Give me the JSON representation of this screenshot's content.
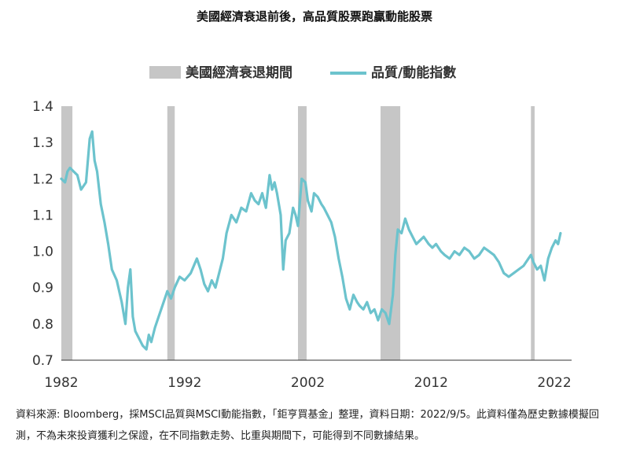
{
  "chart_data": {
    "type": "line",
    "title": "美國經濟衰退前後，高品質股票跑贏動能股票",
    "legend": {
      "placement": "top",
      "recession_label": "美國經濟衰退期間",
      "series_label": "品質/動能指數"
    },
    "xlim": [
      1982,
      2023.4
    ],
    "ylim": [
      0.7,
      1.4
    ],
    "x_ticks": [
      "1982",
      "1992",
      "2002",
      "2012",
      "2022"
    ],
    "x_tick_values": [
      1982,
      1992,
      2002,
      2012,
      2022
    ],
    "y_ticks": [
      "0.7",
      "0.8",
      "0.9",
      "1.0",
      "1.1",
      "1.2",
      "1.3",
      "1.4"
    ],
    "y_tick_values": [
      0.7,
      0.8,
      0.9,
      1.0,
      1.1,
      1.2,
      1.3,
      1.4
    ],
    "recessions": [
      {
        "start": 1982.0,
        "end": 1982.9
      },
      {
        "start": 1990.6,
        "end": 1991.2
      },
      {
        "start": 2001.2,
        "end": 2001.9
      },
      {
        "start": 2007.9,
        "end": 2009.5
      },
      {
        "start": 2020.1,
        "end": 2020.4
      }
    ],
    "series": [
      {
        "name": "品質/動能指數",
        "color": "#6cc3cd",
        "x": [
          1982.0,
          1982.3,
          1982.5,
          1982.7,
          1983.0,
          1983.3,
          1983.6,
          1984.0,
          1984.3,
          1984.5,
          1984.7,
          1984.9,
          1985.2,
          1985.5,
          1985.8,
          1986.1,
          1986.5,
          1986.9,
          1987.2,
          1987.4,
          1987.6,
          1987.8,
          1988.0,
          1988.3,
          1988.6,
          1988.9,
          1989.1,
          1989.3,
          1989.6,
          1989.9,
          1990.3,
          1990.6,
          1990.9,
          1991.2,
          1991.6,
          1992.0,
          1992.5,
          1993.0,
          1993.3,
          1993.6,
          1993.9,
          1994.2,
          1994.5,
          1994.8,
          1995.1,
          1995.4,
          1995.8,
          1996.2,
          1996.6,
          1997.0,
          1997.4,
          1997.7,
          1998.0,
          1998.3,
          1998.6,
          1998.9,
          1999.1,
          1999.3,
          1999.5,
          1999.8,
          2000.0,
          2000.2,
          2000.5,
          2000.8,
          2001.0,
          2001.2,
          2001.5,
          2001.8,
          2002.0,
          2002.3,
          2002.5,
          2002.8,
          2003.1,
          2003.3,
          2003.6,
          2003.9,
          2004.2,
          2004.5,
          2004.8,
          2005.1,
          2005.4,
          2005.7,
          2006.0,
          2006.2,
          2006.5,
          2006.8,
          2007.1,
          2007.4,
          2007.7,
          2008.0,
          2008.3,
          2008.6,
          2008.9,
          2009.1,
          2009.3,
          2009.6,
          2009.9,
          2010.2,
          2010.5,
          2010.8,
          2011.1,
          2011.4,
          2011.8,
          2012.1,
          2012.4,
          2012.8,
          2013.1,
          2013.5,
          2013.9,
          2014.3,
          2014.7,
          2015.1,
          2015.5,
          2015.9,
          2016.3,
          2016.7,
          2017.1,
          2017.5,
          2017.9,
          2018.3,
          2018.7,
          2019.1,
          2019.5,
          2019.9,
          2020.1,
          2020.3,
          2020.6,
          2020.9,
          2021.2,
          2021.5,
          2021.8,
          2022.1,
          2022.3,
          2022.5
        ],
        "y": [
          1.2,
          1.19,
          1.22,
          1.23,
          1.22,
          1.21,
          1.17,
          1.19,
          1.31,
          1.33,
          1.25,
          1.22,
          1.13,
          1.08,
          1.02,
          0.95,
          0.92,
          0.86,
          0.8,
          0.9,
          0.95,
          0.82,
          0.78,
          0.76,
          0.74,
          0.73,
          0.77,
          0.75,
          0.79,
          0.82,
          0.86,
          0.89,
          0.87,
          0.9,
          0.93,
          0.92,
          0.94,
          0.98,
          0.95,
          0.91,
          0.89,
          0.92,
          0.9,
          0.94,
          0.98,
          1.05,
          1.1,
          1.08,
          1.12,
          1.11,
          1.16,
          1.14,
          1.13,
          1.16,
          1.12,
          1.21,
          1.17,
          1.19,
          1.16,
          1.1,
          0.95,
          1.03,
          1.05,
          1.12,
          1.1,
          1.07,
          1.2,
          1.19,
          1.14,
          1.11,
          1.16,
          1.15,
          1.13,
          1.12,
          1.1,
          1.08,
          1.04,
          0.98,
          0.93,
          0.87,
          0.84,
          0.88,
          0.86,
          0.85,
          0.84,
          0.86,
          0.83,
          0.84,
          0.81,
          0.84,
          0.83,
          0.8,
          0.88,
          0.99,
          1.06,
          1.05,
          1.09,
          1.06,
          1.04,
          1.02,
          1.03,
          1.04,
          1.02,
          1.01,
          1.02,
          1.0,
          0.99,
          0.98,
          1.0,
          0.99,
          1.01,
          1.0,
          0.98,
          0.99,
          1.01,
          1.0,
          0.99,
          0.97,
          0.94,
          0.93,
          0.94,
          0.95,
          0.96,
          0.98,
          0.99,
          0.97,
          0.95,
          0.96,
          0.92,
          0.98,
          1.01,
          1.03,
          1.02,
          1.05
        ]
      }
    ]
  },
  "source_note": "資料來源: Bloomberg，採MSCI品質與MSCI動能指數，「鉅亨買基金」整理，資料日期：2022/9/5。此資料僅為歷史數據模擬回測，不為未來投資獲利之保證，在不同指數走勢、比重與期間下，可能得到不同數據結果。"
}
